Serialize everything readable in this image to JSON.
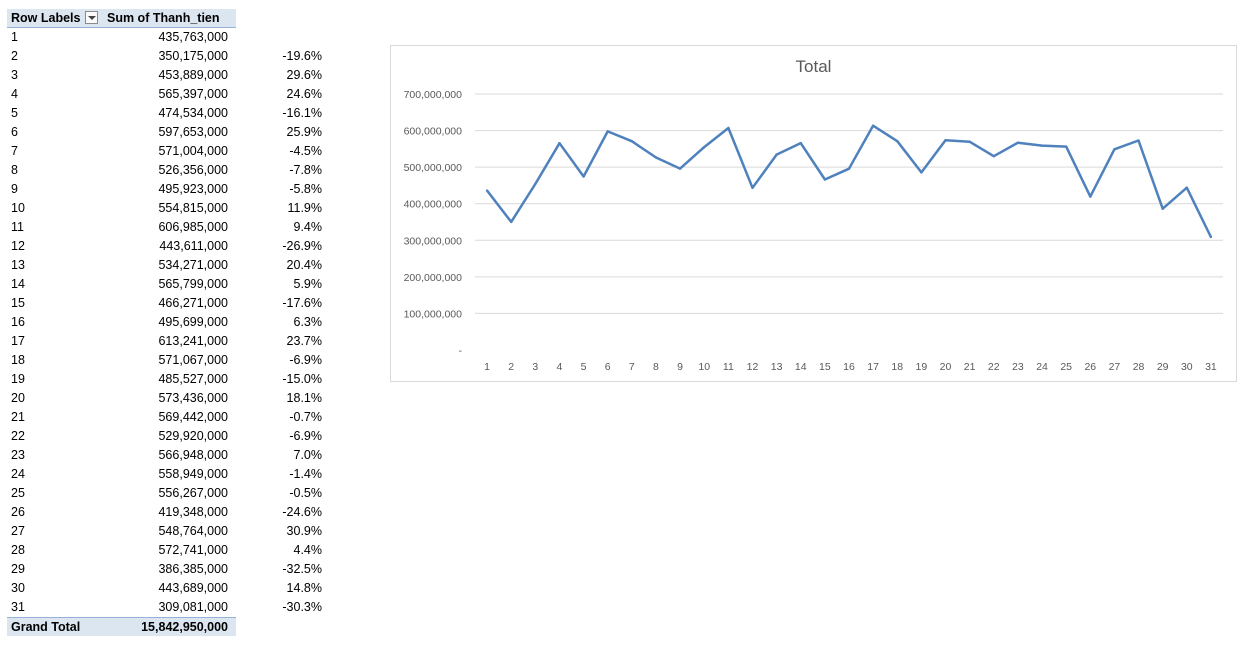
{
  "pivot": {
    "header": {
      "row_labels": "Row Labels",
      "sum_label": "Sum of Thanh_tien"
    },
    "rows": [
      {
        "label": "1",
        "value": "435,763,000",
        "pct": ""
      },
      {
        "label": "2",
        "value": "350,175,000",
        "pct": "-19.6%"
      },
      {
        "label": "3",
        "value": "453,889,000",
        "pct": "29.6%"
      },
      {
        "label": "4",
        "value": "565,397,000",
        "pct": "24.6%"
      },
      {
        "label": "5",
        "value": "474,534,000",
        "pct": "-16.1%"
      },
      {
        "label": "6",
        "value": "597,653,000",
        "pct": "25.9%"
      },
      {
        "label": "7",
        "value": "571,004,000",
        "pct": "-4.5%"
      },
      {
        "label": "8",
        "value": "526,356,000",
        "pct": "-7.8%"
      },
      {
        "label": "9",
        "value": "495,923,000",
        "pct": "-5.8%"
      },
      {
        "label": "10",
        "value": "554,815,000",
        "pct": "11.9%"
      },
      {
        "label": "11",
        "value": "606,985,000",
        "pct": "9.4%"
      },
      {
        "label": "12",
        "value": "443,611,000",
        "pct": "-26.9%"
      },
      {
        "label": "13",
        "value": "534,271,000",
        "pct": "20.4%"
      },
      {
        "label": "14",
        "value": "565,799,000",
        "pct": "5.9%"
      },
      {
        "label": "15",
        "value": "466,271,000",
        "pct": "-17.6%"
      },
      {
        "label": "16",
        "value": "495,699,000",
        "pct": "6.3%"
      },
      {
        "label": "17",
        "value": "613,241,000",
        "pct": "23.7%"
      },
      {
        "label": "18",
        "value": "571,067,000",
        "pct": "-6.9%"
      },
      {
        "label": "19",
        "value": "485,527,000",
        "pct": "-15.0%"
      },
      {
        "label": "20",
        "value": "573,436,000",
        "pct": "18.1%"
      },
      {
        "label": "21",
        "value": "569,442,000",
        "pct": "-0.7%"
      },
      {
        "label": "22",
        "value": "529,920,000",
        "pct": "-6.9%"
      },
      {
        "label": "23",
        "value": "566,948,000",
        "pct": "7.0%"
      },
      {
        "label": "24",
        "value": "558,949,000",
        "pct": "-1.4%"
      },
      {
        "label": "25",
        "value": "556,267,000",
        "pct": "-0.5%"
      },
      {
        "label": "26",
        "value": "419,348,000",
        "pct": "-24.6%"
      },
      {
        "label": "27",
        "value": "548,764,000",
        "pct": "30.9%"
      },
      {
        "label": "28",
        "value": "572,741,000",
        "pct": "4.4%"
      },
      {
        "label": "29",
        "value": "386,385,000",
        "pct": "-32.5%"
      },
      {
        "label": "30",
        "value": "443,689,000",
        "pct": "14.8%"
      },
      {
        "label": "31",
        "value": "309,081,000",
        "pct": "-30.3%"
      }
    ],
    "grand_total": {
      "label": "Grand Total",
      "value": "15,842,950,000"
    }
  },
  "chart_data": {
    "type": "line",
    "title": "Total",
    "categories": [
      "1",
      "2",
      "3",
      "4",
      "5",
      "6",
      "7",
      "8",
      "9",
      "10",
      "11",
      "12",
      "13",
      "14",
      "15",
      "16",
      "17",
      "18",
      "19",
      "20",
      "21",
      "22",
      "23",
      "24",
      "25",
      "26",
      "27",
      "28",
      "29",
      "30",
      "31"
    ],
    "series": [
      {
        "name": "Total",
        "color": "#4f81bd",
        "values": [
          435763000,
          350175000,
          453889000,
          565397000,
          474534000,
          597653000,
          571004000,
          526356000,
          495923000,
          554815000,
          606985000,
          443611000,
          534271000,
          565799000,
          466271000,
          495699000,
          613241000,
          571067000,
          485527000,
          573436000,
          569442000,
          529920000,
          566948000,
          558949000,
          556267000,
          419348000,
          548764000,
          572741000,
          386385000,
          443689000,
          309081000
        ]
      }
    ],
    "ylim": [
      0,
      700000000
    ],
    "yticks": [
      "-",
      "100,000,000",
      "200,000,000",
      "300,000,000",
      "400,000,000",
      "500,000,000",
      "600,000,000",
      "700,000,000"
    ],
    "grid": true,
    "legend": "none"
  }
}
